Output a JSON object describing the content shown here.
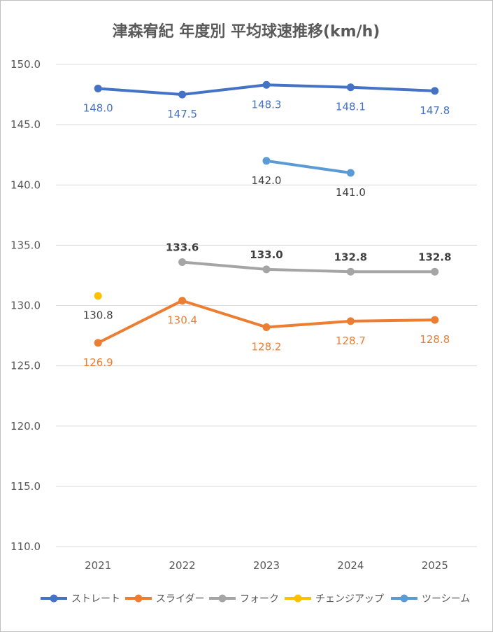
{
  "chart_data": {
    "type": "line",
    "title": "津森宥紀 年度別 平均球速推移(km/h)",
    "categories": [
      "2021",
      "2022",
      "2023",
      "2024",
      "2025"
    ],
    "ylim": [
      110,
      150
    ],
    "yticks": [
      "110.0",
      "115.0",
      "120.0",
      "125.0",
      "130.0",
      "135.0",
      "140.0",
      "145.0",
      "150.0"
    ],
    "grid": true,
    "legend_position": "bottom",
    "series": [
      {
        "name": "ストレート",
        "color": "#4472C4",
        "values": [
          148.0,
          147.5,
          148.3,
          148.1,
          147.8
        ],
        "labels": [
          "148.0",
          "147.5",
          "148.3",
          "148.1",
          "147.8"
        ],
        "label_position": "below"
      },
      {
        "name": "スライダー",
        "color": "#ED7D31",
        "values": [
          126.9,
          130.4,
          128.2,
          128.7,
          128.8
        ],
        "labels": [
          "126.9",
          "130.4",
          "128.2",
          "128.7",
          "128.8"
        ],
        "label_position": "below"
      },
      {
        "name": "フォーク",
        "color": "#A5A5A5",
        "values": [
          null,
          133.6,
          133.0,
          132.8,
          132.8
        ],
        "labels": [
          null,
          "133.6",
          "133.0",
          "132.8",
          "132.8"
        ],
        "label_position": "above"
      },
      {
        "name": "チェンジアップ",
        "color": "#FFC000",
        "values": [
          130.8,
          null,
          null,
          null,
          null
        ],
        "labels": [
          "130.8",
          null,
          null,
          null,
          null
        ],
        "label_position": "below"
      },
      {
        "name": "ツーシーム",
        "color": "#5B9BD5",
        "values": [
          null,
          null,
          142.0,
          141.0,
          null
        ],
        "labels": [
          null,
          null,
          "142.0",
          "141.0",
          null
        ],
        "label_position": "below"
      }
    ]
  }
}
